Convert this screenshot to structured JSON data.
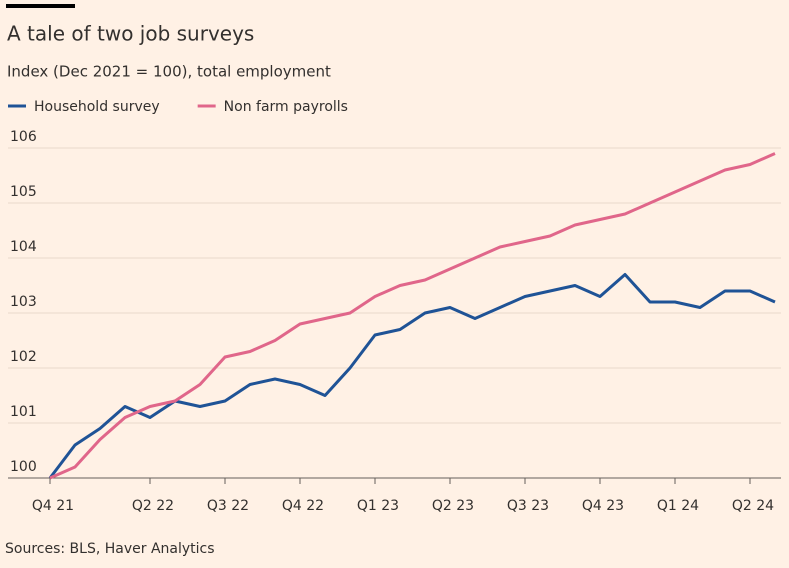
{
  "chart_data": {
    "type": "line",
    "title": "A tale of two job surveys",
    "subtitle": "Index (Dec 2021 = 100), total employment",
    "source": "Sources: BLS, Haver Analytics",
    "categories": [
      "Q4 21",
      null,
      null,
      null,
      "Q2 22",
      null,
      null,
      "Q3 22",
      null,
      null,
      "Q4 22",
      null,
      null,
      "Q1 23",
      null,
      null,
      "Q2 23",
      null,
      null,
      "Q3 23",
      null,
      null,
      "Q4 23",
      null,
      null,
      "Q1 24",
      null,
      null,
      "Q2 24",
      null
    ],
    "series": [
      {
        "name": "Household survey",
        "color": "#1f5396",
        "values": [
          100,
          100.6,
          100.9,
          101.3,
          101.1,
          101.4,
          101.3,
          101.4,
          101.7,
          101.8,
          101.7,
          101.5,
          102.0,
          102.6,
          102.7,
          103.0,
          103.1,
          102.9,
          103.1,
          103.3,
          103.4,
          103.5,
          103.3,
          103.7,
          103.2,
          103.2,
          103.1,
          103.4,
          103.4,
          103.2
        ]
      },
      {
        "name": "Non farm payrolls",
        "color": "#e0668a",
        "values": [
          100,
          100.2,
          100.7,
          101.1,
          101.3,
          101.4,
          101.7,
          102.2,
          102.3,
          102.5,
          102.8,
          102.9,
          103.0,
          103.3,
          103.5,
          103.6,
          103.8,
          104.0,
          104.2,
          104.3,
          104.4,
          104.6,
          104.7,
          104.8,
          105.0,
          105.2,
          105.4,
          105.6,
          105.7,
          105.9
        ]
      }
    ],
    "ylim": [
      100,
      106
    ],
    "yticks": [
      100,
      101,
      102,
      103,
      104,
      105,
      106
    ],
    "grid": true
  }
}
